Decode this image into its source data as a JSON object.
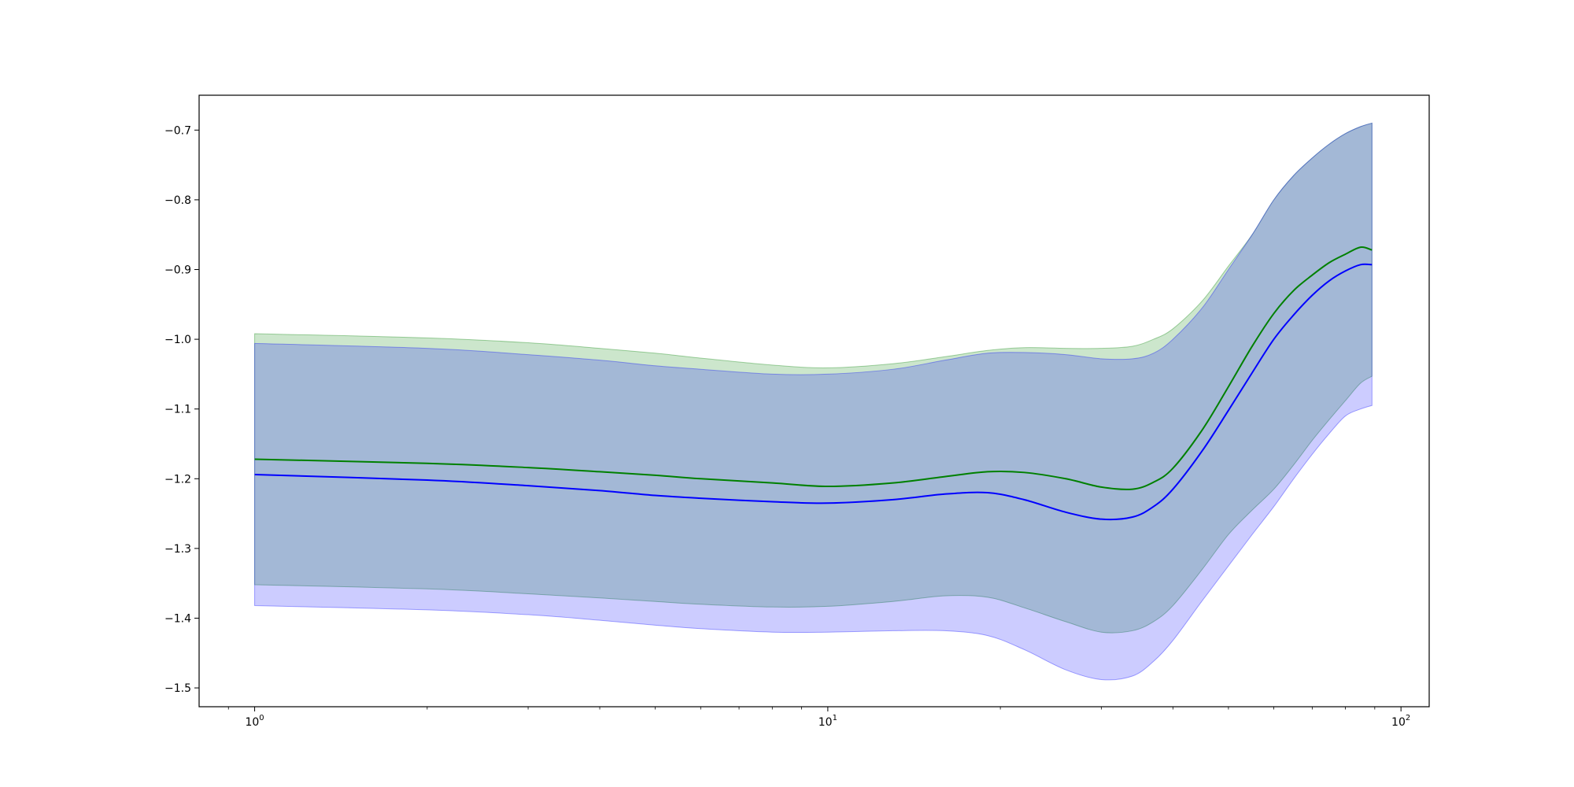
{
  "chart_data": {
    "type": "area",
    "xscale": "log",
    "x": [
      1,
      2,
      3,
      4,
      5,
      6,
      8,
      10,
      13,
      16,
      19,
      22,
      26,
      30,
      34,
      37,
      40,
      45,
      50,
      55,
      60,
      65,
      70,
      75,
      80,
      85,
      89
    ],
    "series": [
      {
        "color": "#008000",
        "band_color": "#008000",
        "band_opacity": 0.2,
        "values": [
          -1.172,
          -1.178,
          -1.184,
          -1.19,
          -1.195,
          -1.2,
          -1.206,
          -1.211,
          -1.206,
          -1.197,
          -1.19,
          -1.191,
          -1.2,
          -1.212,
          -1.215,
          -1.205,
          -1.185,
          -1.13,
          -1.068,
          -1.01,
          -0.963,
          -0.93,
          -0.908,
          -0.89,
          -0.878,
          -0.868,
          -0.872
        ],
        "lower": [
          -1.352,
          -1.358,
          -1.365,
          -1.371,
          -1.376,
          -1.38,
          -1.384,
          -1.383,
          -1.376,
          -1.368,
          -1.37,
          -1.385,
          -1.405,
          -1.42,
          -1.418,
          -1.405,
          -1.382,
          -1.33,
          -1.28,
          -1.245,
          -1.215,
          -1.18,
          -1.145,
          -1.115,
          -1.088,
          -1.063,
          -1.053
        ],
        "upper": [
          -0.992,
          -0.998,
          -1.005,
          -1.013,
          -1.02,
          -1.027,
          -1.037,
          -1.041,
          -1.035,
          -1.025,
          -1.016,
          -1.012,
          -1.013,
          -1.013,
          -1.01,
          -1.0,
          -0.985,
          -0.945,
          -0.895,
          -0.85,
          -0.8,
          -0.765,
          -0.74,
          -0.72,
          -0.705,
          -0.695,
          -0.69
        ]
      },
      {
        "color": "#0000ff",
        "band_color": "#0000ff",
        "band_opacity": 0.2,
        "values": [
          -1.194,
          -1.202,
          -1.21,
          -1.217,
          -1.224,
          -1.228,
          -1.233,
          -1.235,
          -1.23,
          -1.222,
          -1.22,
          -1.23,
          -1.248,
          -1.258,
          -1.255,
          -1.24,
          -1.215,
          -1.16,
          -1.102,
          -1.048,
          -1.0,
          -0.965,
          -0.937,
          -0.916,
          -0.902,
          -0.893,
          -0.893
        ],
        "lower": [
          -1.382,
          -1.388,
          -1.395,
          -1.403,
          -1.41,
          -1.415,
          -1.42,
          -1.42,
          -1.418,
          -1.418,
          -1.425,
          -1.445,
          -1.474,
          -1.488,
          -1.483,
          -1.462,
          -1.432,
          -1.375,
          -1.325,
          -1.28,
          -1.24,
          -1.2,
          -1.165,
          -1.135,
          -1.11,
          -1.1,
          -1.095
        ],
        "upper": [
          -1.006,
          -1.013,
          -1.022,
          -1.03,
          -1.038,
          -1.043,
          -1.05,
          -1.05,
          -1.043,
          -1.03,
          -1.02,
          -1.019,
          -1.022,
          -1.028,
          -1.028,
          -1.02,
          -1.0,
          -0.955,
          -0.9,
          -0.85,
          -0.8,
          -0.765,
          -0.74,
          -0.72,
          -0.705,
          -0.695,
          -0.69
        ]
      }
    ],
    "xlim": [
      0.8,
      112
    ],
    "ylim": [
      -1.527,
      -0.65
    ],
    "xticks": [
      {
        "value": 1,
        "base": "10",
        "exp": "0"
      },
      {
        "value": 10,
        "base": "10",
        "exp": "1"
      },
      {
        "value": 100,
        "base": "10",
        "exp": "2"
      }
    ],
    "xminor_ticks": [
      0.9,
      2,
      3,
      4,
      5,
      6,
      7,
      8,
      9,
      20,
      30,
      40,
      50,
      60,
      70,
      80,
      90
    ],
    "yticks": [
      -0.7,
      -0.8,
      -0.9,
      -1.0,
      -1.1,
      -1.2,
      -1.3,
      -1.4,
      -1.5
    ],
    "ytick_labels": [
      "−0.7",
      "−0.8",
      "−0.9",
      "−1.0",
      "−1.1",
      "−1.2",
      "−1.3",
      "−1.4",
      "−1.5"
    ],
    "grid": false,
    "title": "",
    "xlabel": "",
    "ylabel": ""
  }
}
